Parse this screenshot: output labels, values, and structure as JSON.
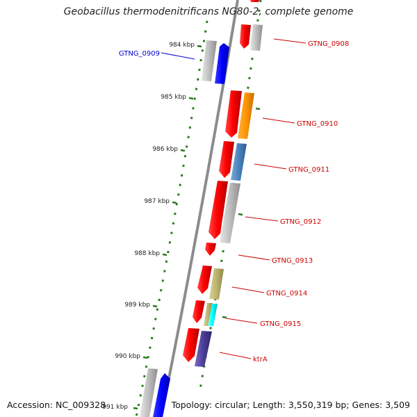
{
  "title": "Geobacillus thermodenitrificans NG80-2, complete genome",
  "footer": {
    "accession": "Accession: NC_009328",
    "topology": "Topology: circular; Length: 3,550,319 bp; Genes: 3,509"
  },
  "ticks": [
    "984 kbp",
    "985 kbp",
    "986 kbp",
    "987 kbp",
    "988 kbp",
    "989 kbp",
    "990 kbp",
    "991 kbp"
  ],
  "genes": [
    {
      "name": "GTNG_0908",
      "color": "#cc0000"
    },
    {
      "name": "GTNG_0909",
      "color": "#0000cc"
    },
    {
      "name": "GTNG_0910",
      "color": "#cc0000"
    },
    {
      "name": "GTNG_0911",
      "color": "#cc0000"
    },
    {
      "name": "GTNG_0912",
      "color": "#cc0000"
    },
    {
      "name": "GTNG_0913",
      "color": "#cc0000"
    },
    {
      "name": "GTNG_0914",
      "color": "#cc0000"
    },
    {
      "name": "GTNG_0915",
      "color": "#cc0000"
    },
    {
      "name": "ktrA",
      "color": "#cc0000"
    }
  ]
}
